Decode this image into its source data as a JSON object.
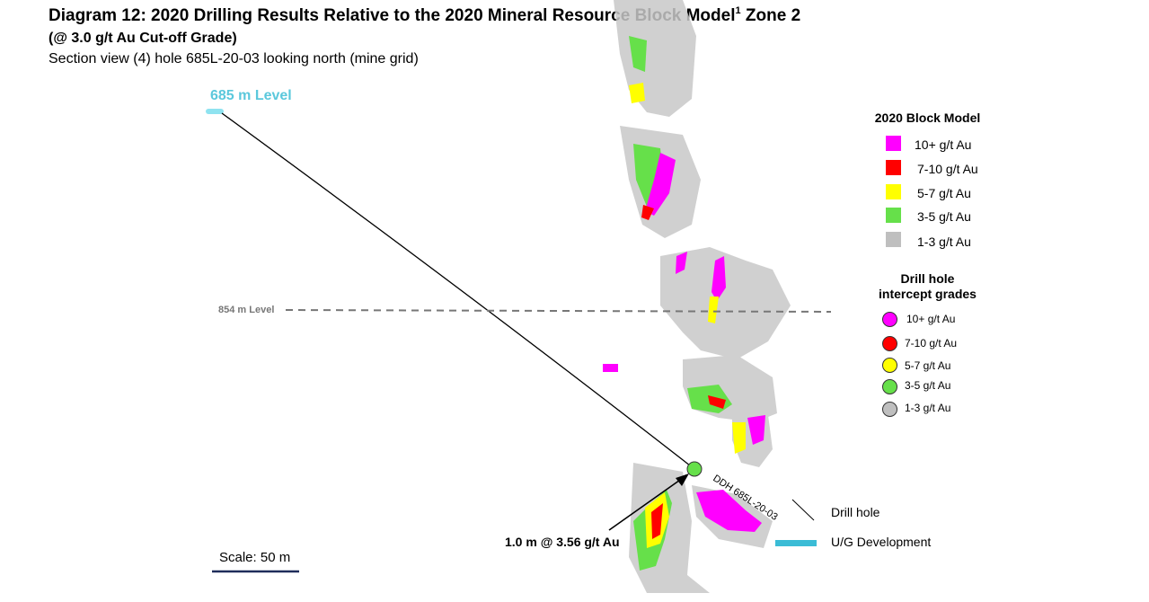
{
  "header": {
    "title": "Diagram 12: 2020 Drilling Results Relative to the 2020 Mineral Resource Block Model",
    "title_sup": "1",
    "title_suffix": "Zone 2",
    "subtitle": "(@ 3.0 g/t Au Cut-off Grade)",
    "section": "Section view (4) hole 685L-20-03 looking north (mine grid)"
  },
  "labels": {
    "level_685": "685 m Level",
    "level_854": "854 m Level",
    "hole_id": "DDH 685L-20-03",
    "intercept": "1.0 m @ 3.56 g/t Au",
    "scale": "Scale: 50 m"
  },
  "legend": {
    "block_model_title": "2020 Block Model",
    "block_model": [
      {
        "label": "10+ g/t Au",
        "color": "#ff00ff"
      },
      {
        "label": "7-10 g/t Au",
        "color": "#ff0000"
      },
      {
        "label": "5-7 g/t Au",
        "color": "#ffff00"
      },
      {
        "label": "3-5 g/t Au",
        "color": "#66e04a"
      },
      {
        "label": "1-3 g/t Au",
        "color": "#bfbfbf"
      }
    ],
    "drill_title_line1": "Drill hole",
    "drill_title_line2": "intercept grades",
    "drill": [
      {
        "label": "10+ g/t Au",
        "color": "#ff00ff"
      },
      {
        "label": "7-10 g/t Au",
        "color": "#ff0000"
      },
      {
        "label": "5-7 g/t Au",
        "color": "#ffff00"
      },
      {
        "label": "3-5 g/t Au",
        "color": "#66e04a"
      },
      {
        "label": "1-3 g/t Au",
        "color": "#bfbfbf"
      }
    ],
    "line_legend": [
      {
        "label": "Drill hole",
        "color": "#000000"
      },
      {
        "label": "U/G Development",
        "color": "#3bbcd6"
      }
    ]
  },
  "colors": {
    "level_text": "#5bc8dc",
    "dev": "#8fe3f0",
    "scale_bar": "#1f2d5a",
    "intercept_dot": "#66e04a"
  }
}
